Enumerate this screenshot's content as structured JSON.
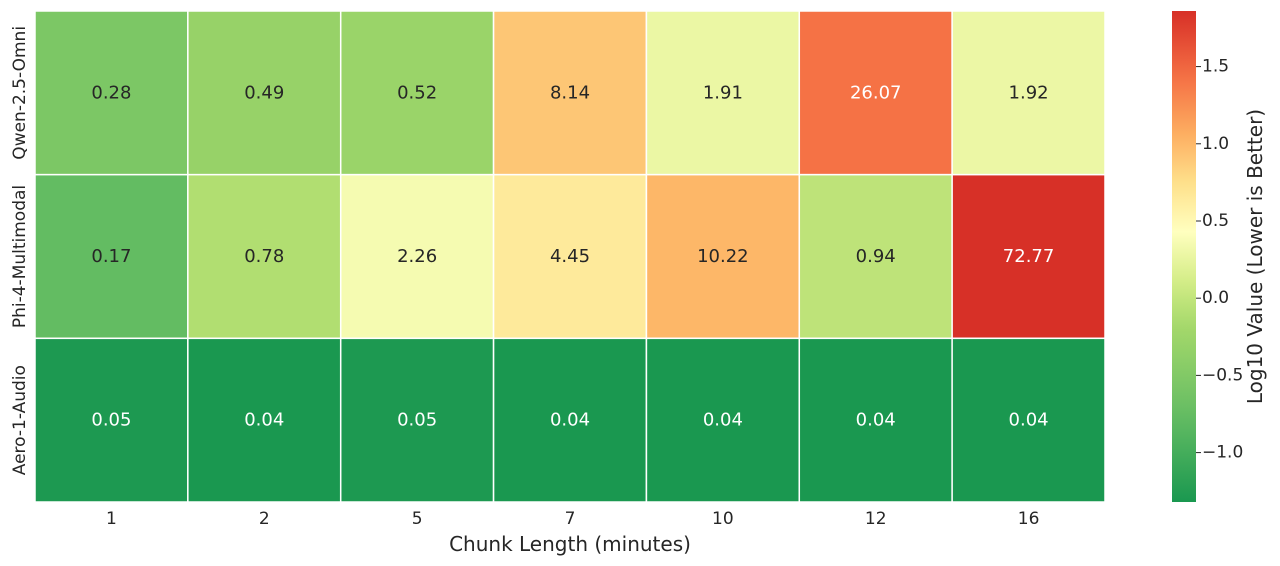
{
  "chart_data": {
    "type": "heatmap",
    "title": "",
    "xlabel": "Chunk Length (minutes)",
    "ylabel": "",
    "x_categories": [
      "1",
      "2",
      "5",
      "7",
      "10",
      "12",
      "16"
    ],
    "y_categories": [
      "Qwen-2.5-Omni",
      "Phi-4-Multimodal",
      "Aero-1-Audio"
    ],
    "values": [
      [
        0.28,
        0.49,
        0.52,
        8.14,
        1.91,
        26.07,
        1.92
      ],
      [
        0.17,
        0.78,
        2.26,
        4.45,
        10.22,
        0.94,
        72.77
      ],
      [
        0.05,
        0.04,
        0.05,
        0.04,
        0.04,
        0.04,
        0.04
      ]
    ],
    "value_labels": [
      [
        "0.28",
        "0.49",
        "0.52",
        "8.14",
        "1.91",
        "26.07",
        "1.92"
      ],
      [
        "0.17",
        "0.78",
        "2.26",
        "4.45",
        "10.22",
        "0.94",
        "72.77"
      ],
      [
        "0.05",
        "0.04",
        "0.05",
        "0.04",
        "0.04",
        "0.04",
        "0.04"
      ]
    ],
    "color_scale": {
      "label": "Log10 Value (Lower is Better)",
      "transform": "log10",
      "min": -1.32,
      "max": 1.86,
      "colormap": "RdYlGn_r",
      "ticks": [
        -1.0,
        -0.5,
        0.0,
        0.5,
        1.0,
        1.5
      ],
      "tick_labels": [
        "−1.0",
        "−0.5",
        "0.0",
        "0.5",
        "1.0",
        "1.5"
      ]
    }
  }
}
